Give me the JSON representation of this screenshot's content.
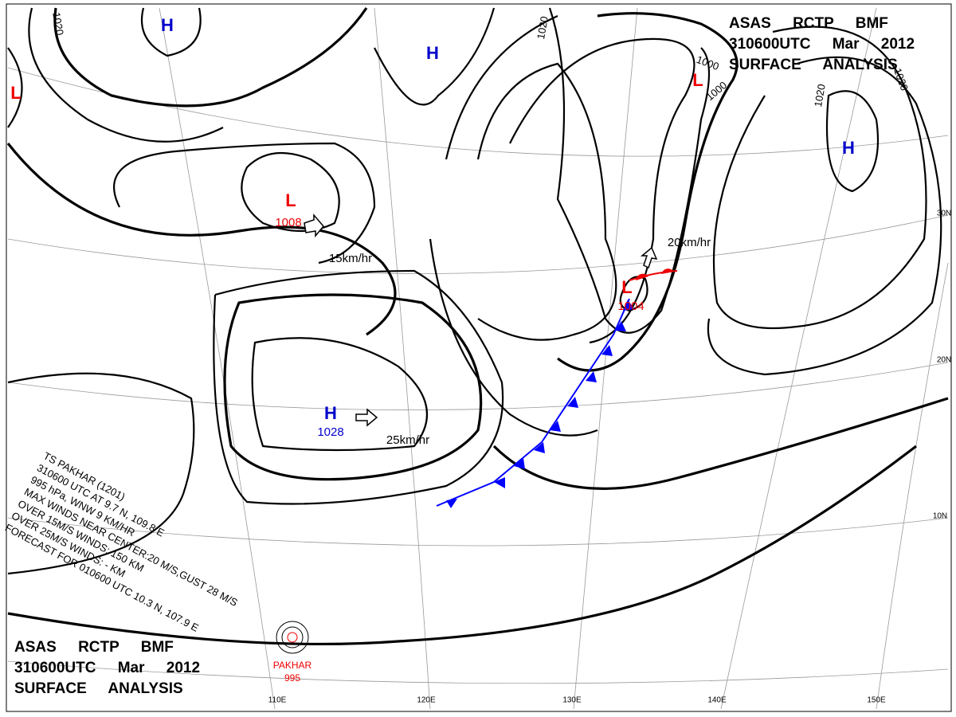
{
  "title_top": {
    "lines": [
      "ASAS RCTP BMF",
      "310600UTC Mar 2012",
      "SURFACE ANALYSIS"
    ]
  },
  "title_bottom": {
    "lines": [
      "ASAS RCTP BMF",
      "310600UTC Mar 2012",
      "SURFACE ANALYSIS"
    ]
  },
  "pressure_centers": [
    {
      "label": "H"
    },
    {
      "label": "H"
    },
    {
      "label": "L"
    },
    {
      "label": "L",
      "pressure": "1008"
    },
    {
      "label": "H",
      "pressure": "1028"
    },
    {
      "label": "L"
    },
    {
      "label": "L",
      "pressure": "1004"
    },
    {
      "label": "H"
    }
  ],
  "isobar_labels": [
    "1020",
    "1020",
    "1000",
    "1000",
    "1020",
    "1020"
  ],
  "motion_labels": [
    "15km/hr",
    "25km/hr",
    "20km/hr"
  ],
  "storm": {
    "lines": [
      "TS PAKHAR (1201)",
      "310600 UTC AT 9.7 N, 109.8 E",
      "995 hPa, WNW 9 KM/HR",
      "MAX WINDS NEAR CENTER:20 M/S,GUST 28 M/S",
      "OVER 15M/S WINDS: 150 KM",
      "OVER 25M/S WINDS: - KM",
      "FORECAST FOR 010600 UTC 10.3 N, 107.9 E"
    ],
    "name": "PAKHAR",
    "pressure": "995"
  },
  "lat_labels": [
    "30N",
    "20N",
    "10N"
  ],
  "lon_labels": [
    "110E",
    "120E",
    "130E",
    "140E",
    "150E"
  ]
}
